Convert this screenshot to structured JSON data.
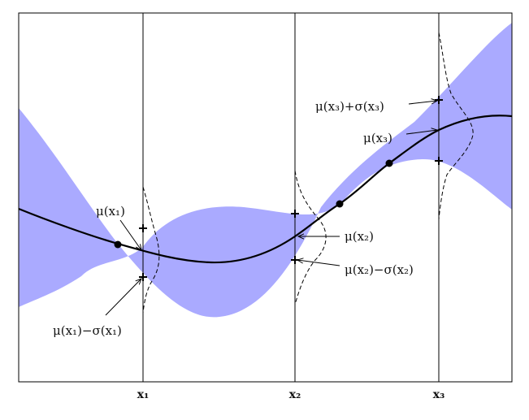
{
  "diagram": {
    "band_color": "#aaaaff",
    "curve_color": "#000000",
    "x_ticks": [
      {
        "id": "x1",
        "label": "x₁"
      },
      {
        "id": "x2",
        "label": "x₂"
      },
      {
        "id": "x3",
        "label": "x₃"
      }
    ],
    "annotations": {
      "mu_x1": "μ(x₁)",
      "mu_minus_sigma_x1": "μ(x₁)−σ(x₁)",
      "mu_x2": "μ(x₂)",
      "mu_minus_sigma_x2": "μ(x₂)−σ(x₂)",
      "mu_x3": "μ(x₃)",
      "mu_plus_sigma_x3": "μ(x₃)+σ(x₃)"
    }
  }
}
